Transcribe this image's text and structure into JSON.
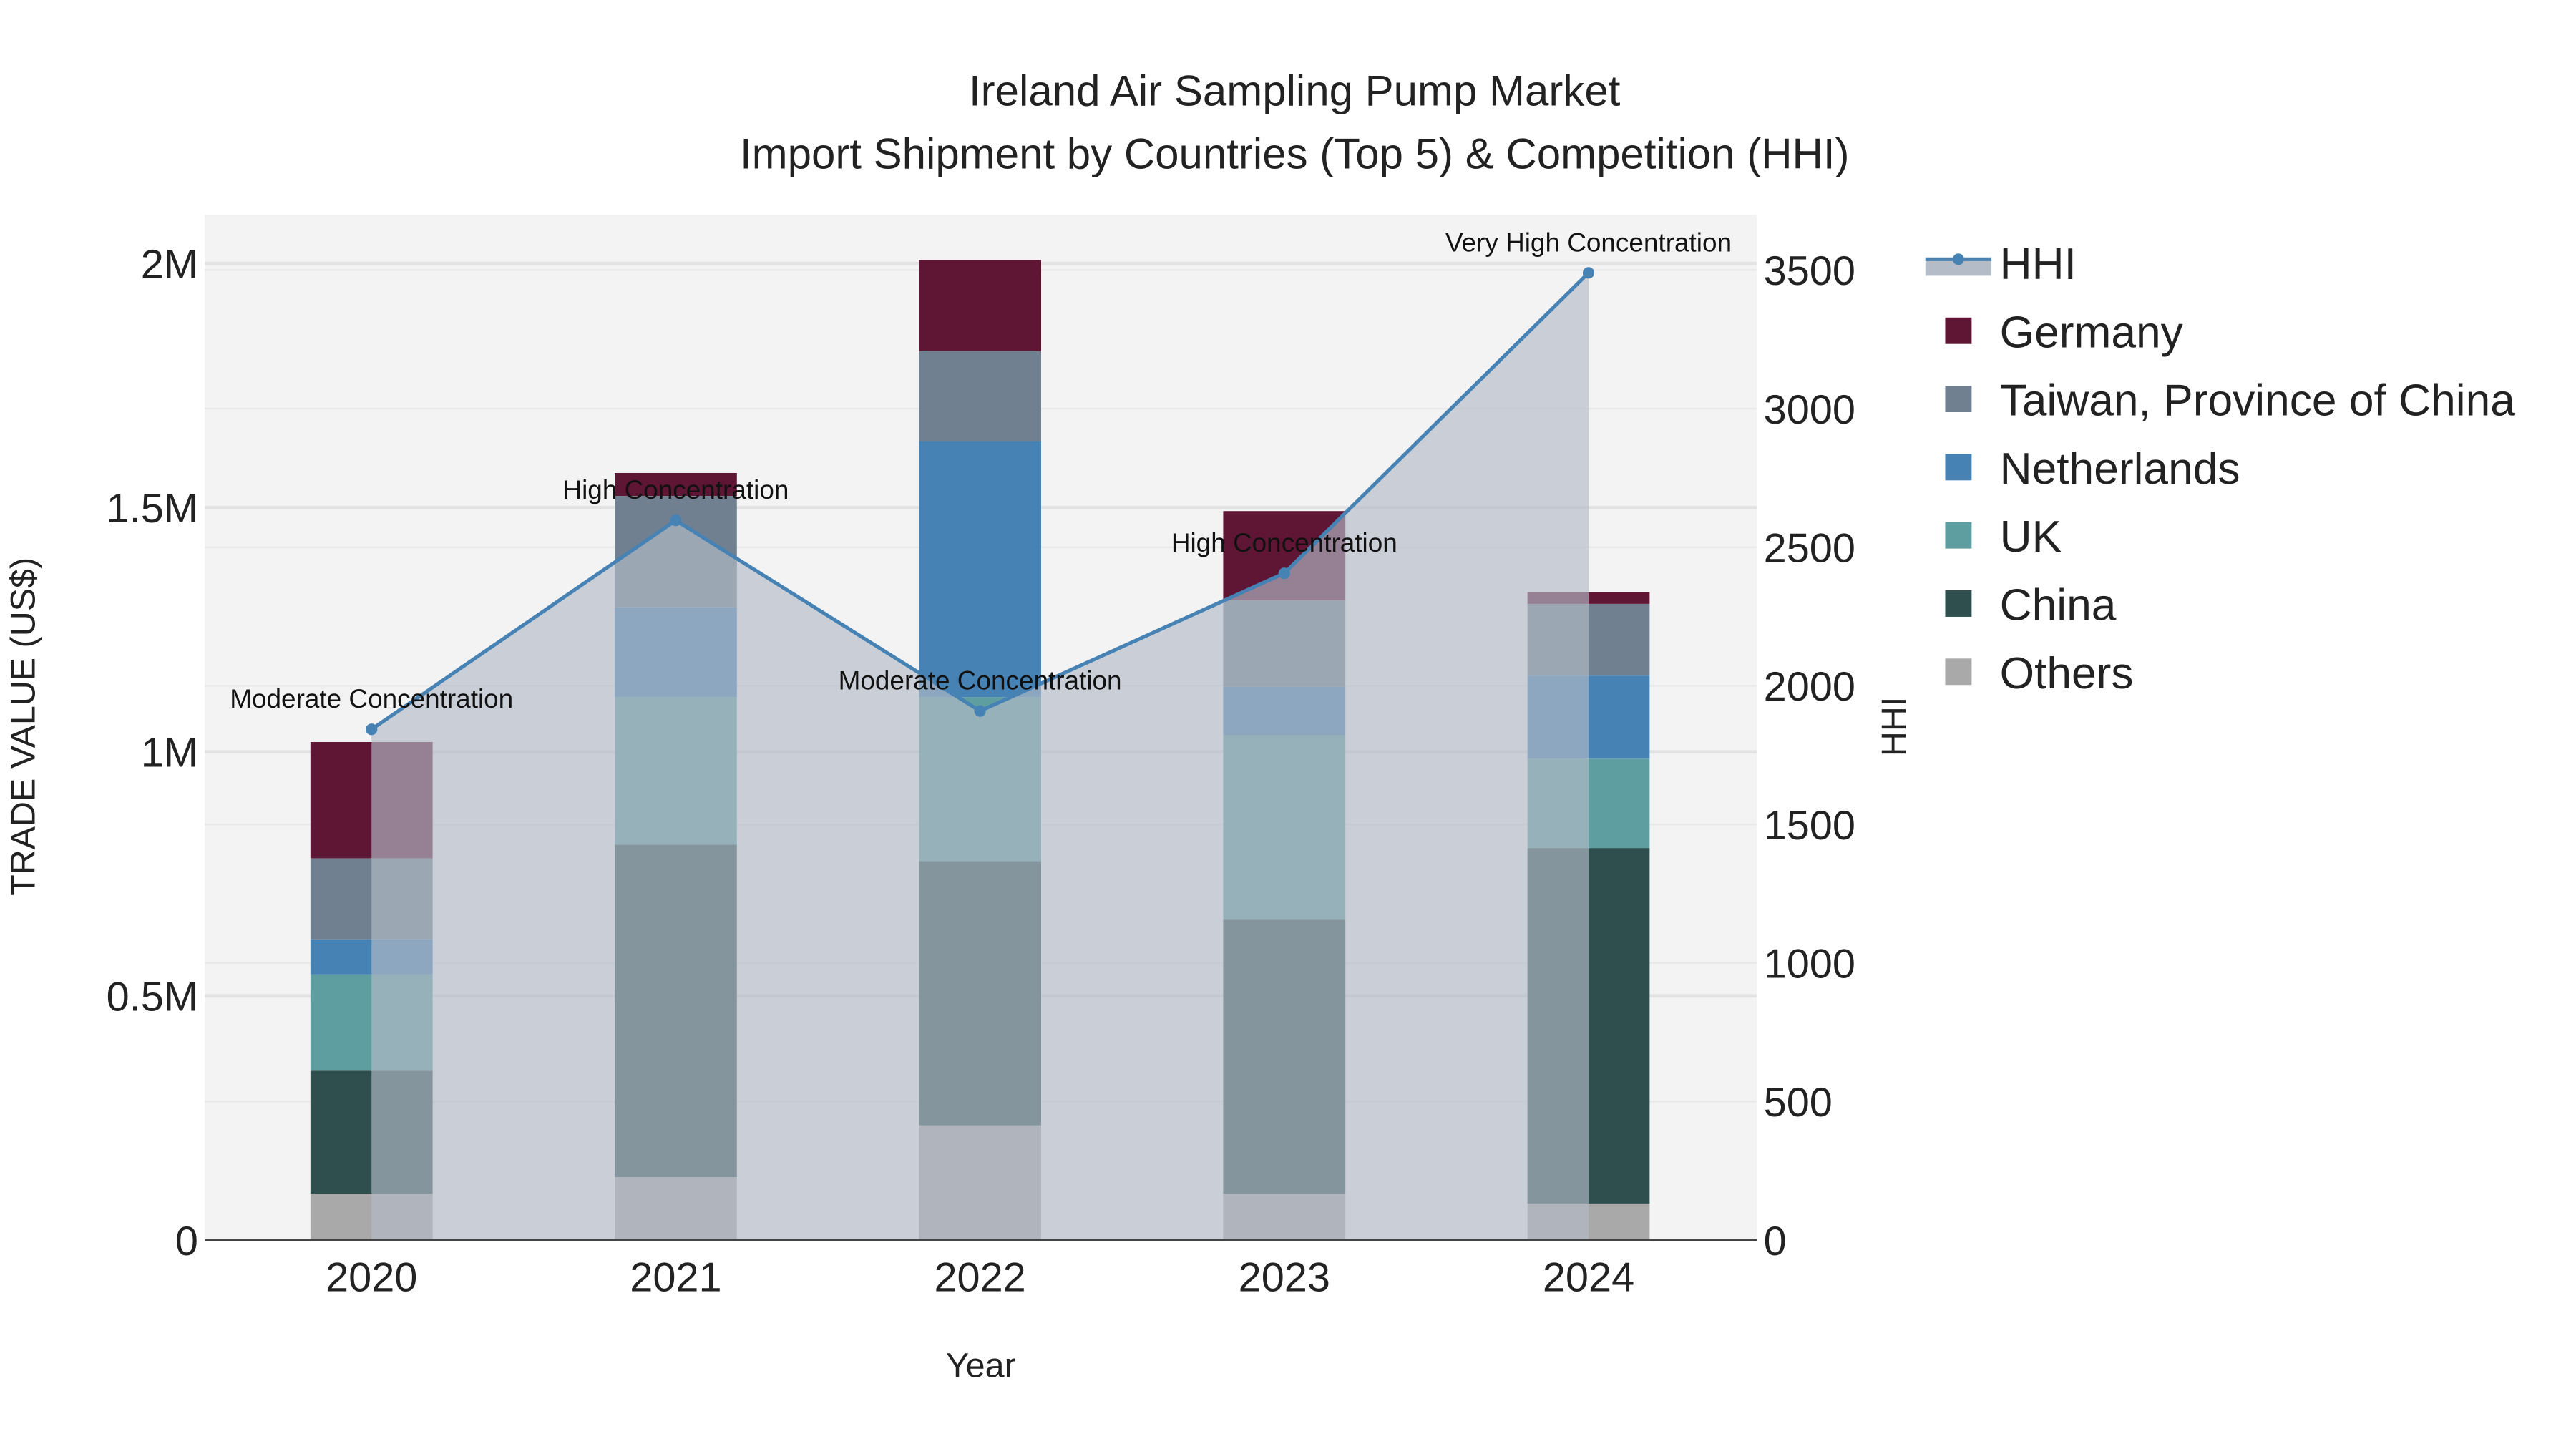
{
  "chart_data": {
    "type": "bar",
    "title": "Ireland Air Sampling Pump Market",
    "subtitle": "Import Shipment by Countries (Top 5) & Competition (HHI)",
    "xlabel": "Year",
    "ylabel": "TRADE VALUE (US$)",
    "y2label": "HHI",
    "categories": [
      "2020",
      "2021",
      "2022",
      "2023",
      "2024"
    ],
    "ylim": [
      0,
      2100000
    ],
    "y2lim": [
      0,
      3700
    ],
    "yticks": [
      {
        "v": 0,
        "label": "0"
      },
      {
        "v": 500000,
        "label": "0.5M"
      },
      {
        "v": 1000000,
        "label": "1M"
      },
      {
        "v": 1500000,
        "label": "1.5M"
      },
      {
        "v": 2000000,
        "label": "2M"
      }
    ],
    "y2ticks": [
      0,
      500,
      1000,
      1500,
      2000,
      2500,
      3000,
      3500
    ],
    "stacked": true,
    "series": [
      {
        "name": "Others",
        "color": "#a9a9a9",
        "values": [
          95000,
          129000,
          235000,
          95000,
          75000
        ]
      },
      {
        "name": "China",
        "color": "#2f4f4f",
        "values": [
          252000,
          681000,
          541000,
          561000,
          728000
        ]
      },
      {
        "name": "UK",
        "color": "#5f9ea0",
        "values": [
          197000,
          302000,
          336000,
          378000,
          183000
        ]
      },
      {
        "name": "Netherlands",
        "color": "#4682b4",
        "values": [
          72000,
          184000,
          524000,
          99000,
          170000
        ]
      },
      {
        "name": "Taiwan, Province of China",
        "color": "#708090",
        "values": [
          166000,
          228000,
          184000,
          177000,
          147000
        ]
      },
      {
        "name": "Germany",
        "color": "#5e1634",
        "values": [
          238000,
          47000,
          187000,
          183000,
          24000
        ]
      }
    ],
    "line": {
      "name": "HHI",
      "color": "#4682b4",
      "values": [
        1843,
        2597,
        1909,
        2406,
        3490
      ]
    },
    "annotations": [
      "Moderate Concentration",
      "High Concentration",
      "Moderate Concentration",
      "High Concentration",
      "Very High Concentration"
    ],
    "legend_order": [
      "HHI",
      "Germany",
      "Taiwan, Province of China",
      "Netherlands",
      "UK",
      "China",
      "Others"
    ],
    "legend": "right",
    "grid": true
  }
}
